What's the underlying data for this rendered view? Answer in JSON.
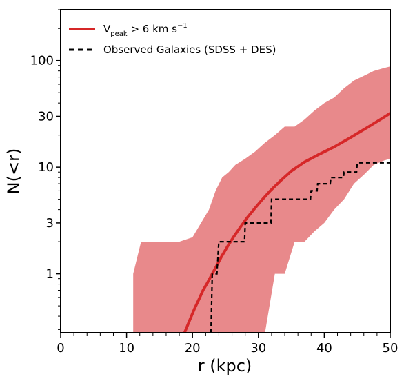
{
  "chart_data": {
    "type": "line",
    "xlabel": "r (kpc)",
    "ylabel": "N(<r)",
    "xlim": [
      0,
      50
    ],
    "ylim": [
      0.28,
      300
    ],
    "yscale": "log",
    "xticks": [
      0,
      10,
      20,
      30,
      40,
      50
    ],
    "yticks": [
      1,
      3,
      10,
      30,
      100
    ],
    "ytick_labels": [
      "1",
      "3",
      "10",
      "30",
      "100"
    ],
    "grid": false,
    "legend_position": "top-left",
    "colors": {
      "model_line": "#d62728",
      "model_band": "#e8898b",
      "observed": "#000000"
    },
    "legend": [
      {
        "key": "model",
        "base": "V",
        "subscript": "peak",
        "rest": " > 6 km s",
        "superscript": "−1"
      },
      {
        "key": "observed",
        "text": "Observed Galaxies (SDSS + DES)"
      }
    ],
    "series": [
      {
        "key": "model",
        "style": "solid",
        "x": [
          18.8,
          19.6,
          20.3,
          21.0,
          21.6,
          22.3,
          23.0,
          23.7,
          24.4,
          25.3,
          26.2,
          27.2,
          28.2,
          29.3,
          30.5,
          31.8,
          33.3,
          35.0,
          37.0,
          39.0,
          41.5,
          44.0,
          46.5,
          48.5,
          50.0
        ],
        "y": [
          0.28,
          0.37,
          0.47,
          0.58,
          0.7,
          0.83,
          1.0,
          1.2,
          1.45,
          1.8,
          2.2,
          2.7,
          3.3,
          4.0,
          4.9,
          6.0,
          7.4,
          9.2,
          11.2,
          13.0,
          15.5,
          19.0,
          23.5,
          28.0,
          32.0
        ]
      },
      {
        "key": "observed",
        "style": "dashed",
        "x": [
          22.8,
          23.0,
          23.6,
          23.7,
          24.0,
          27.9,
          28.0,
          31.9,
          32.0,
          37.9,
          38.0,
          38.9,
          39.0,
          40.9,
          41.0,
          42.9,
          43.0,
          44.9,
          45.0,
          50.0
        ],
        "y": [
          0.28,
          1.0,
          1.0,
          1.0,
          2.0,
          2.0,
          3.0,
          3.0,
          5.0,
          5.0,
          6.0,
          6.0,
          7.0,
          7.0,
          8.0,
          8.0,
          9.0,
          9.0,
          11.0,
          11.0
        ]
      }
    ],
    "band": {
      "key": "model",
      "x": [
        11.0,
        12.2,
        15.0,
        18.0,
        20.0,
        22.5,
        23.5,
        24.5,
        25.5,
        26.5,
        28.0,
        29.5,
        31.0,
        32.5,
        34.0,
        35.5,
        37.0,
        38.5,
        40.0,
        41.5,
        43.0,
        44.5,
        46.0,
        47.5,
        49.0,
        50.0
      ],
      "upper": [
        1.0,
        2.0,
        2.0,
        2.0,
        2.2,
        4.0,
        6.0,
        8.0,
        9.0,
        10.5,
        12.0,
        14.0,
        17.0,
        20.0,
        24.0,
        24.0,
        28.0,
        34.0,
        40.0,
        45.0,
        55.0,
        65.0,
        72.0,
        80.0,
        85.0,
        88.0
      ],
      "lower": [
        0.28,
        0.28,
        0.28,
        0.28,
        0.28,
        0.28,
        0.28,
        0.28,
        0.28,
        0.28,
        0.28,
        0.28,
        0.28,
        1.0,
        1.0,
        2.0,
        2.0,
        2.5,
        3.0,
        4.0,
        5.0,
        7.0,
        8.5,
        10.5,
        11.5,
        12.0
      ]
    }
  }
}
